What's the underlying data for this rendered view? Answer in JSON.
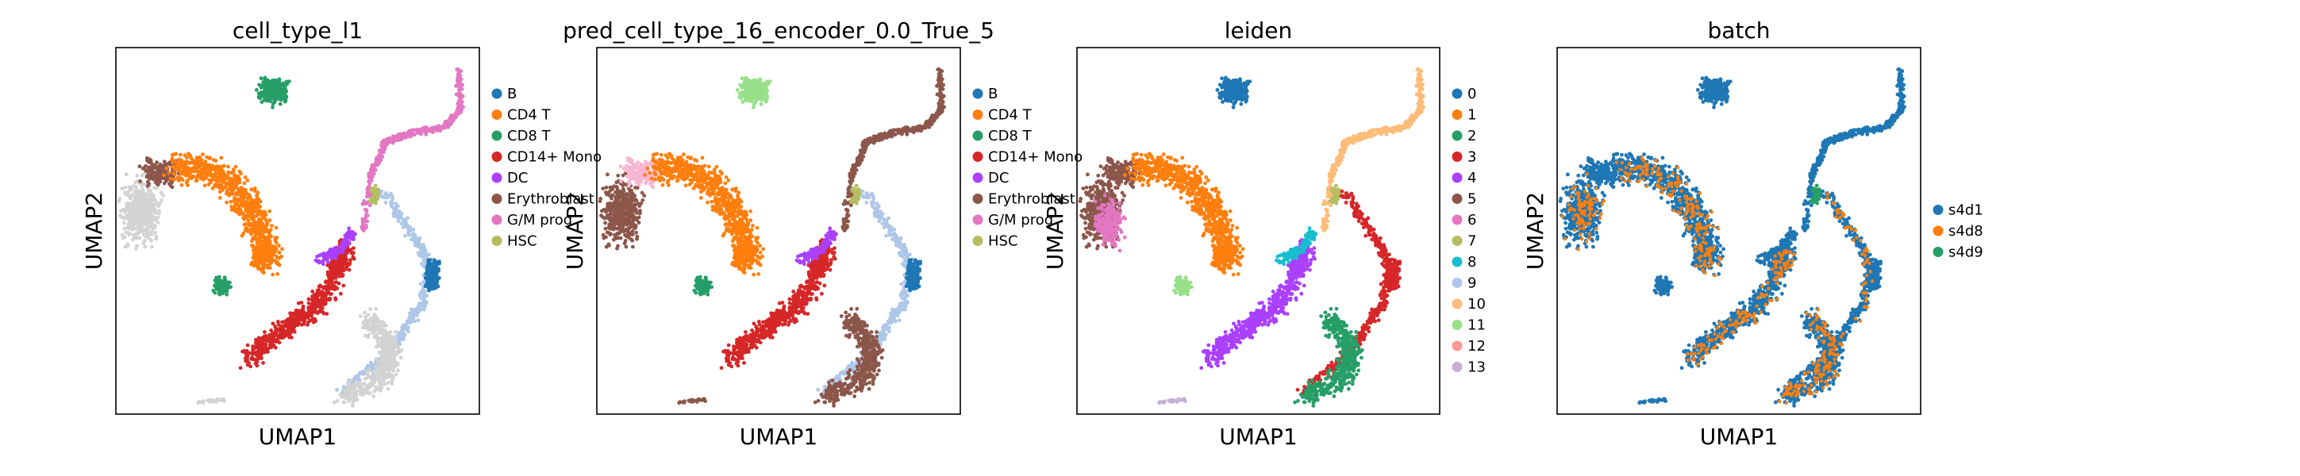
{
  "chart_data": [
    {
      "type": "scatter",
      "title": "cell_type_l1",
      "xlabel": "UMAP1",
      "ylabel": "UMAP2",
      "grid": false,
      "legend_position": "right",
      "series": [
        {
          "name": "B",
          "color": "#1f77b4"
        },
        {
          "name": "CD4 T",
          "color": "#ff7f0e"
        },
        {
          "name": "CD8 T",
          "color": "#279e68"
        },
        {
          "name": "CD14+ Mono",
          "color": "#d62728"
        },
        {
          "name": "DC",
          "color": "#aa40fc"
        },
        {
          "name": "Erythroblast",
          "color": "#8c564b"
        },
        {
          "name": "G/M prog",
          "color": "#e377c2"
        },
        {
          "name": "HSC",
          "color": "#b5bd61"
        }
      ]
    },
    {
      "type": "scatter",
      "title": "pred_cell_type_16_encoder_0.0_True_5",
      "xlabel": "UMAP1",
      "ylabel": "UMAP2",
      "grid": false,
      "legend_position": "right",
      "series": [
        {
          "name": "B",
          "color": "#1f77b4"
        },
        {
          "name": "CD4 T",
          "color": "#ff7f0e"
        },
        {
          "name": "CD8 T",
          "color": "#279e68"
        },
        {
          "name": "CD14+ Mono",
          "color": "#d62728"
        },
        {
          "name": "DC",
          "color": "#aa40fc"
        },
        {
          "name": "Erythroblast",
          "color": "#8c564b"
        },
        {
          "name": "G/M prog",
          "color": "#e377c2"
        },
        {
          "name": "HSC",
          "color": "#b5bd61"
        }
      ]
    },
    {
      "type": "scatter",
      "title": "leiden",
      "xlabel": "UMAP1",
      "ylabel": "UMAP2",
      "grid": false,
      "legend_position": "right",
      "series": [
        {
          "name": "0",
          "color": "#1f77b4"
        },
        {
          "name": "1",
          "color": "#ff7f0e"
        },
        {
          "name": "2",
          "color": "#279e68"
        },
        {
          "name": "3",
          "color": "#d62728"
        },
        {
          "name": "4",
          "color": "#aa40fc"
        },
        {
          "name": "5",
          "color": "#8c564b"
        },
        {
          "name": "6",
          "color": "#e377c2"
        },
        {
          "name": "7",
          "color": "#b5bd61"
        },
        {
          "name": "8",
          "color": "#17becf"
        },
        {
          "name": "9",
          "color": "#aec7e8"
        },
        {
          "name": "10",
          "color": "#ffbb78"
        },
        {
          "name": "11",
          "color": "#98df8a"
        },
        {
          "name": "12",
          "color": "#ff9896"
        },
        {
          "name": "13",
          "color": "#c5b0d5"
        }
      ]
    },
    {
      "type": "scatter",
      "title": "batch",
      "xlabel": "UMAP1",
      "ylabel": "UMAP2",
      "grid": false,
      "legend_position": "right",
      "series": [
        {
          "name": "s4d1",
          "color": "#1f77b4"
        },
        {
          "name": "s4d8",
          "color": "#ff7f0e"
        },
        {
          "name": "s4d9",
          "color": "#279e68"
        }
      ]
    }
  ]
}
